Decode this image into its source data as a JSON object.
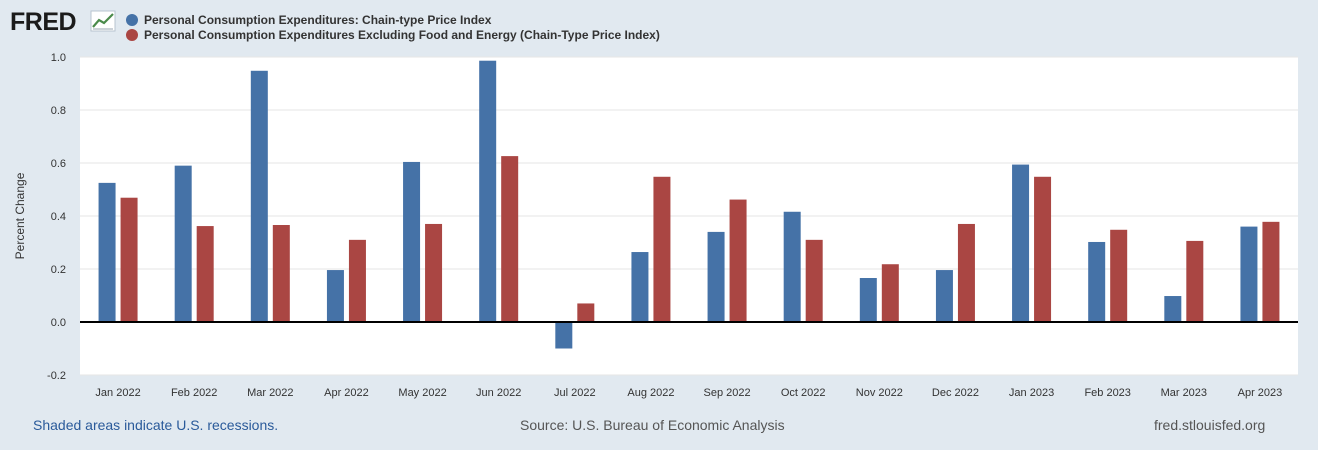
{
  "logo": {
    "text": "FRED"
  },
  "colors": {
    "series1": "#4572a7",
    "series2": "#aa4643",
    "background": "#e1e9f0",
    "plot": "#ffffff"
  },
  "footer": {
    "recessions": "Shaded areas indicate U.S. recessions.",
    "source": "Source: U.S. Bureau of Economic Analysis",
    "site": "fred.stlouisfed.org"
  },
  "chart_data": {
    "type": "bar",
    "ylabel": "Percent Change",
    "xlabel": "",
    "title": "",
    "ylim": [
      -0.2,
      1.0
    ],
    "yticks": [
      "1.0",
      "0.8",
      "0.6",
      "0.4",
      "0.2",
      "0.0",
      "-0.2"
    ],
    "grid": true,
    "legend_position": "top-left",
    "categories": [
      "Jan 2022",
      "Feb 2022",
      "Mar 2022",
      "Apr 2022",
      "May 2022",
      "Jun 2022",
      "Jul 2022",
      "Aug 2022",
      "Sep 2022",
      "Oct 2022",
      "Nov 2022",
      "Dec 2022",
      "Jan 2023",
      "Feb 2023",
      "Mar 2023",
      "Apr 2023"
    ],
    "series": [
      {
        "name": "Personal Consumption Expenditures: Chain-type Price Index",
        "color": "#4572a7",
        "values": [
          0.525,
          0.59,
          0.948,
          0.196,
          0.604,
          0.986,
          -0.1,
          0.264,
          0.34,
          0.416,
          0.166,
          0.196,
          0.594,
          0.302,
          0.098,
          0.36
        ]
      },
      {
        "name": "Personal Consumption Expenditures Excluding Food and Energy (Chain-Type Price Index)",
        "color": "#aa4643",
        "values": [
          0.469,
          0.362,
          0.366,
          0.31,
          0.37,
          0.626,
          0.07,
          0.548,
          0.462,
          0.31,
          0.218,
          0.37,
          0.548,
          0.348,
          0.306,
          0.378
        ]
      }
    ]
  }
}
